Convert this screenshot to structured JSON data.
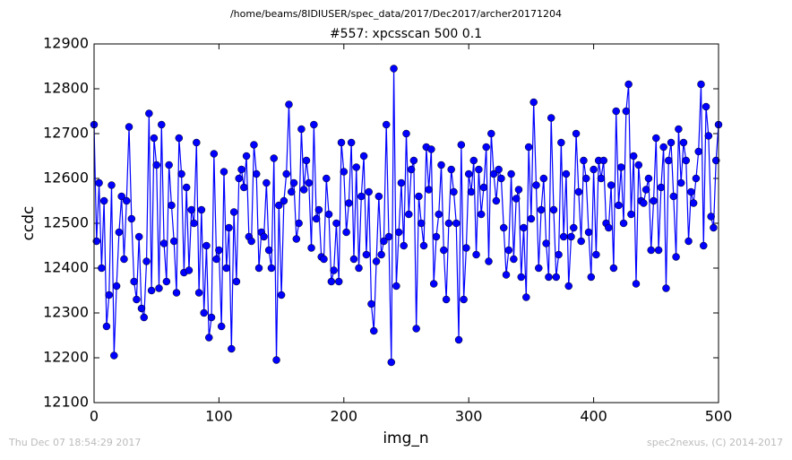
{
  "chart_data": {
    "type": "line",
    "suptitle": "/home/beams/8IDIUSER/spec_data/2017/Dec2017/archer20171204",
    "title": "#557: xpcsscan 500 0.1",
    "xlabel": "img_n",
    "ylabel": "ccdc",
    "footer_left": "Thu Dec 07 18:54:29 2017",
    "footer_right": "spec2nexus, (C) 2014-2017",
    "xlim": [
      0,
      500
    ],
    "xticks": [
      0,
      100,
      200,
      300,
      400,
      500
    ],
    "ylim": [
      12100,
      12900
    ],
    "yticks": [
      12100,
      12200,
      12300,
      12400,
      12500,
      12600,
      12700,
      12800,
      12900
    ],
    "grid": false,
    "x": [
      0,
      2,
      4,
      6,
      8,
      10,
      12,
      14,
      16,
      18,
      20,
      22,
      24,
      26,
      28,
      30,
      32,
      34,
      36,
      38,
      40,
      42,
      44,
      46,
      48,
      50,
      52,
      54,
      56,
      58,
      60,
      62,
      64,
      66,
      68,
      70,
      72,
      74,
      76,
      78,
      80,
      82,
      84,
      86,
      88,
      90,
      92,
      94,
      96,
      98,
      100,
      102,
      104,
      106,
      108,
      110,
      112,
      114,
      116,
      118,
      120,
      122,
      124,
      126,
      128,
      130,
      132,
      134,
      136,
      138,
      140,
      142,
      144,
      146,
      148,
      150,
      152,
      154,
      156,
      158,
      160,
      162,
      164,
      166,
      168,
      170,
      172,
      174,
      176,
      178,
      180,
      182,
      184,
      186,
      188,
      190,
      192,
      194,
      196,
      198,
      200,
      202,
      204,
      206,
      208,
      210,
      212,
      214,
      216,
      218,
      220,
      222,
      224,
      226,
      228,
      230,
      232,
      234,
      236,
      238,
      240,
      242,
      244,
      246,
      248,
      250,
      252,
      254,
      256,
      258,
      260,
      262,
      264,
      266,
      268,
      270,
      272,
      274,
      276,
      278,
      280,
      282,
      284,
      286,
      288,
      290,
      292,
      294,
      296,
      298,
      300,
      302,
      304,
      306,
      308,
      310,
      312,
      314,
      316,
      318,
      320,
      322,
      324,
      326,
      328,
      330,
      332,
      334,
      336,
      338,
      340,
      342,
      344,
      346,
      348,
      350,
      352,
      354,
      356,
      358,
      360,
      362,
      364,
      366,
      368,
      370,
      372,
      374,
      376,
      378,
      380,
      382,
      384,
      386,
      388,
      390,
      392,
      394,
      396,
      398,
      400,
      402,
      404,
      406,
      408,
      410,
      412,
      414,
      416,
      418,
      420,
      422,
      424,
      426,
      428,
      430,
      432,
      434,
      436,
      438,
      440,
      442,
      444,
      446,
      448,
      450,
      452,
      454,
      456,
      458,
      460,
      462,
      464,
      466,
      468,
      470,
      472,
      474,
      476,
      478,
      480,
      482,
      484,
      486,
      488,
      490,
      492,
      494,
      496,
      498,
      500
    ],
    "series": [
      {
        "name": "ccdc",
        "color": "#0000ff",
        "values": [
          12720,
          12460,
          12590,
          12400,
          12550,
          12270,
          12340,
          12585,
          12205,
          12360,
          12480,
          12560,
          12420,
          12550,
          12715,
          12510,
          12370,
          12330,
          12470,
          12310,
          12290,
          12415,
          12745,
          12350,
          12690,
          12630,
          12355,
          12720,
          12455,
          12370,
          12630,
          12540,
          12460,
          12345,
          12690,
          12610,
          12390,
          12580,
          12395,
          12530,
          12500,
          12680,
          12345,
          12530,
          12300,
          12450,
          12245,
          12290,
          12655,
          12420,
          12440,
          12270,
          12615,
          12400,
          12490,
          12220,
          12525,
          12370,
          12600,
          12620,
          12580,
          12650,
          12470,
          12460,
          12675,
          12610,
          12400,
          12480,
          12470,
          12590,
          12440,
          12400,
          12645,
          12195,
          12540,
          12340,
          12550,
          12610,
          12765,
          12570,
          12590,
          12465,
          12500,
          12710,
          12575,
          12640,
          12590,
          12445,
          12720,
          12510,
          12530,
          12425,
          12420,
          12600,
          12520,
          12370,
          12395,
          12500,
          12370,
          12680,
          12615,
          12480,
          12545,
          12680,
          12420,
          12625,
          12400,
          12560,
          12650,
          12430,
          12570,
          12320,
          12260,
          12415,
          12560,
          12430,
          12460,
          12720,
          12470,
          12190,
          12845,
          12360,
          12480,
          12590,
          12450,
          12700,
          12520,
          12620,
          12640,
          12265,
          12560,
          12500,
          12450,
          12670,
          12575,
          12665,
          12365,
          12470,
          12520,
          12630,
          12440,
          12330,
          12500,
          12620,
          12570,
          12500,
          12240,
          12675,
          12330,
          12445,
          12610,
          12570,
          12640,
          12430,
          12620,
          12520,
          12580,
          12670,
          12415,
          12700,
          12610,
          12550,
          12620,
          12600,
          12490,
          12385,
          12440,
          12610,
          12420,
          12555,
          12575,
          12380,
          12490,
          12335,
          12670,
          12510,
          12770,
          12585,
          12400,
          12530,
          12600,
          12455,
          12380,
          12735,
          12530,
          12380,
          12430,
          12680,
          12470,
          12610,
          12360,
          12470,
          12490,
          12700,
          12570,
          12460,
          12640,
          12600,
          12480,
          12380,
          12620,
          12430,
          12640,
          12600,
          12640,
          12500,
          12490,
          12585,
          12400,
          12750,
          12540,
          12625,
          12500,
          12750,
          12810,
          12520,
          12650,
          12365,
          12630,
          12550,
          12545,
          12575,
          12600,
          12440,
          12550,
          12690,
          12440,
          12580,
          12670,
          12355,
          12640,
          12680,
          12560,
          12425,
          12710,
          12590,
          12680,
          12640,
          12460,
          12570,
          12545,
          12600,
          12660,
          12810,
          12450,
          12760,
          12695,
          12515,
          12490,
          12640,
          12720
        ]
      }
    ]
  }
}
